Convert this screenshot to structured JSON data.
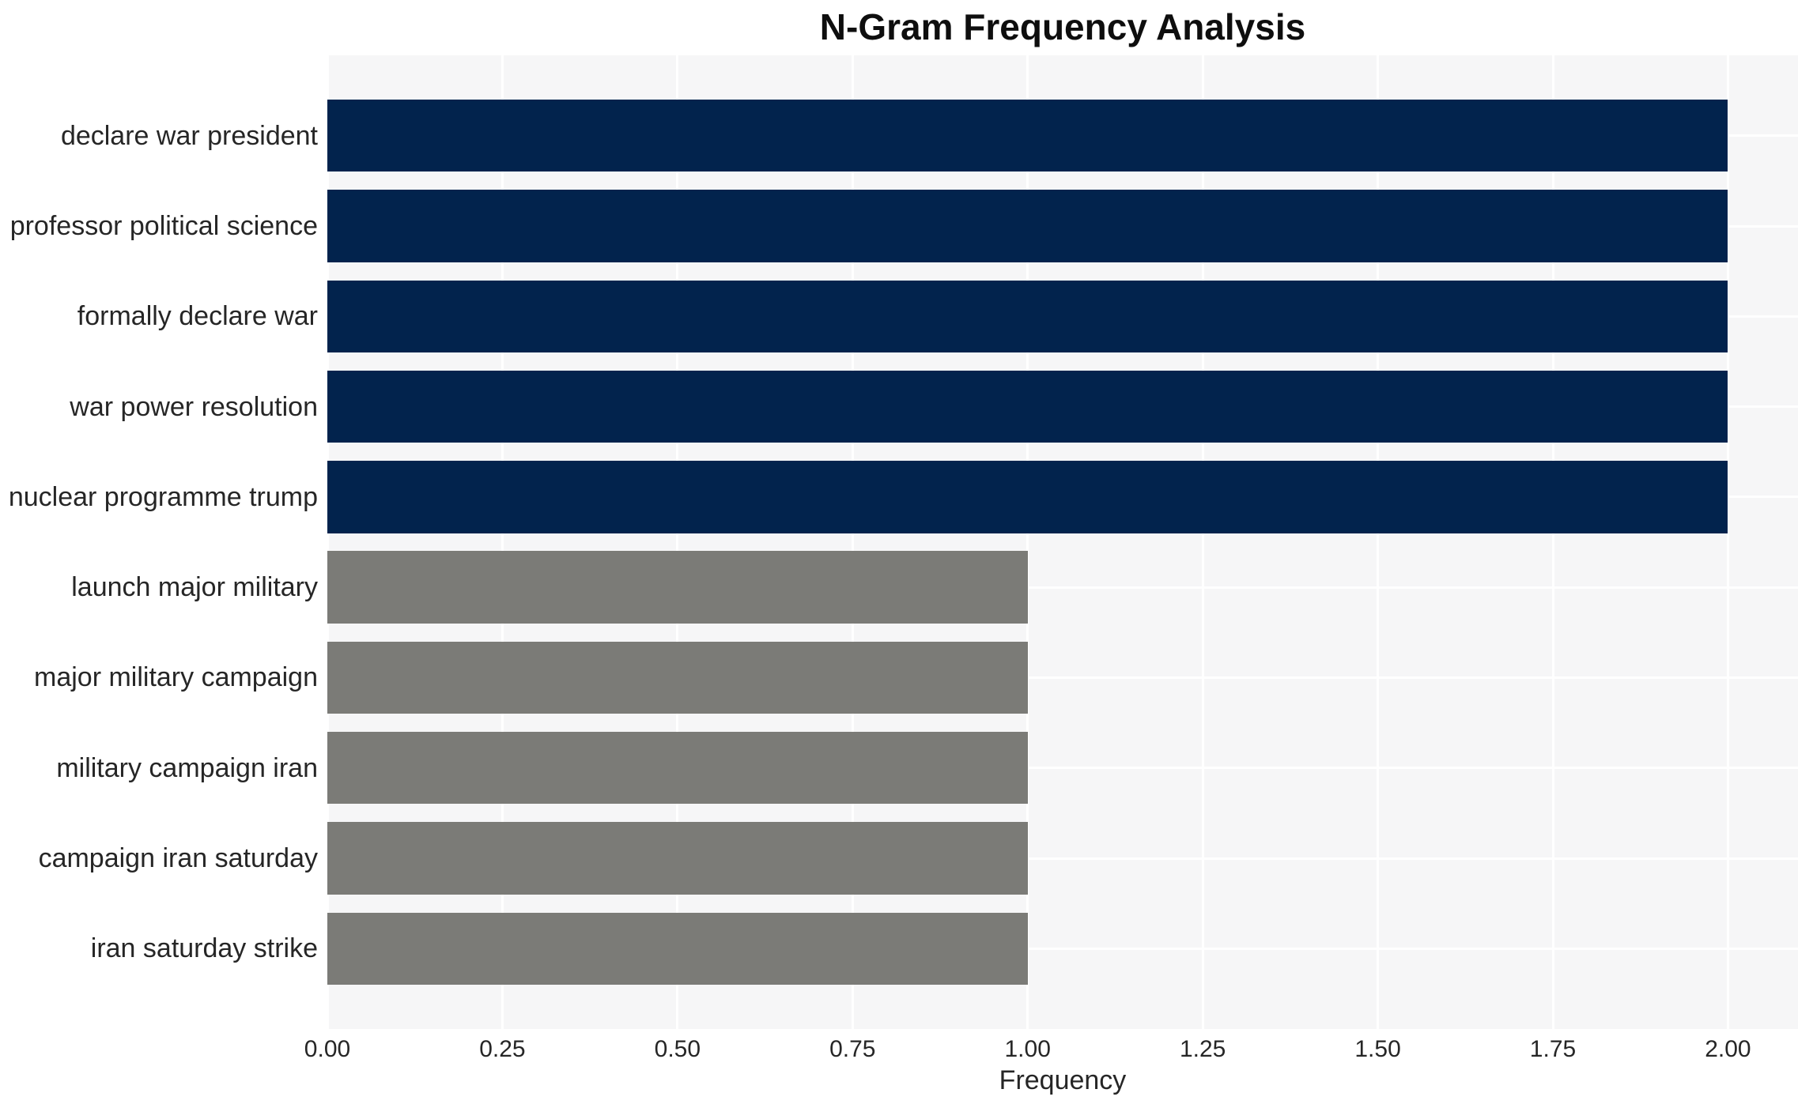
{
  "chart_data": {
    "type": "bar",
    "orientation": "horizontal",
    "title": "N-Gram Frequency Analysis",
    "xlabel": "Frequency",
    "ylabel": "",
    "categories": [
      "declare war president",
      "professor political science",
      "formally declare war",
      "war power resolution",
      "nuclear programme trump",
      "launch major military",
      "major military campaign",
      "military campaign iran",
      "campaign iran saturday",
      "iran saturday strike"
    ],
    "values": [
      2,
      2,
      2,
      2,
      2,
      1,
      1,
      1,
      1,
      1
    ],
    "bar_colors": [
      "#02234d",
      "#02234d",
      "#02234d",
      "#02234d",
      "#02234d",
      "#7b7b77",
      "#7b7b77",
      "#7b7b77",
      "#7b7b77",
      "#7b7b77"
    ],
    "xlim": [
      0,
      2.1
    ],
    "xtick_values": [
      0,
      0.25,
      0.5,
      0.75,
      1.0,
      1.25,
      1.5,
      1.75,
      2.0
    ],
    "xtick_labels": [
      "0.00",
      "0.25",
      "0.50",
      "0.75",
      "1.00",
      "1.25",
      "1.50",
      "1.75",
      "2.00"
    ],
    "grid": true,
    "legend": false,
    "colors": {
      "high_frequency_bar": "#02234d",
      "low_frequency_bar": "#7b7b77",
      "plot_background": "#f6f6f7",
      "gridline": "#ffffff",
      "tick_text": "#262626",
      "title_text": "#0e0e0e",
      "figure_background": "#ffffff"
    }
  }
}
